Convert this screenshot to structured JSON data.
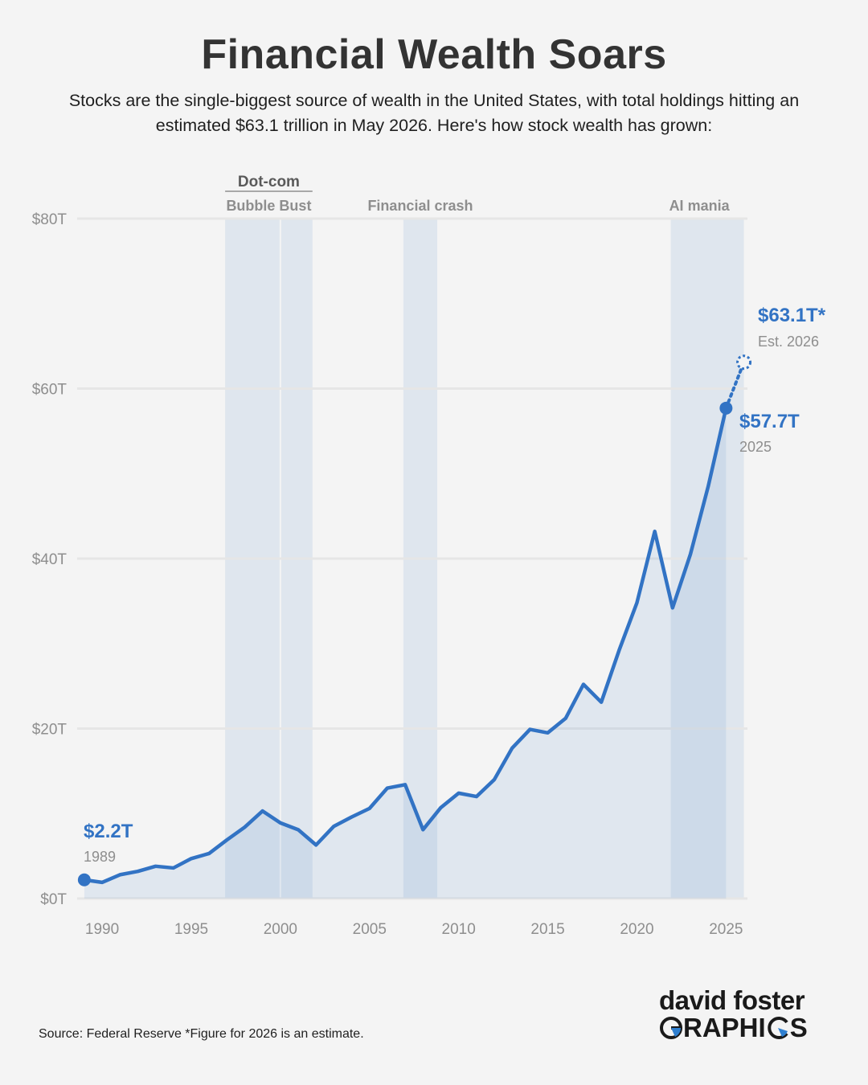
{
  "title": "Financial Wealth Soars",
  "subtitle": "Stocks are the single-biggest source of wealth in the United States, with total holdings hitting an estimated $63.1 trillion in May 2026. Here's how stock wealth has grown:",
  "source": "Source: Federal Reserve *Figure for 2026 is an estimate.",
  "logo": {
    "top": "david foster",
    "bottom_left": "RAPHI",
    "bottom_right": "S"
  },
  "colors": {
    "line": "#3273c4",
    "band": "#dfe6ee",
    "area": "#e1e8f1",
    "grid": "#e6e6e6",
    "text_gray": "#8e8e8e"
  },
  "chart_data": {
    "type": "area",
    "xlim": [
      1988.6,
      2026.2
    ],
    "ylim": [
      0,
      80
    ],
    "y_ticks": [
      0,
      20,
      40,
      60,
      80
    ],
    "y_tick_labels": [
      "$0T",
      "$20T",
      "$40T",
      "$60T",
      "$80T"
    ],
    "x_ticks": [
      1990,
      1995,
      2000,
      2005,
      2010,
      2015,
      2020,
      2025
    ],
    "x_tick_labels": [
      "1990",
      "1995",
      "2000",
      "2005",
      "2010",
      "2015",
      "2020",
      "2025"
    ],
    "series": [
      {
        "x": [
          1989,
          1990,
          1991,
          1992,
          1993,
          1994,
          1995,
          1996,
          1997,
          1998,
          1999,
          2000,
          2001,
          2002,
          2003,
          2004,
          2005,
          2006,
          2007,
          2008,
          2009,
          2010,
          2011,
          2012,
          2013,
          2014,
          2015,
          2016,
          2017,
          2018,
          2019,
          2020,
          2021,
          2022,
          2023,
          2024,
          2025
        ],
        "values": [
          2.2,
          1.9,
          2.8,
          3.2,
          3.8,
          3.6,
          4.7,
          5.3,
          6.9,
          8.4,
          10.3,
          8.9,
          8.1,
          6.3,
          8.5,
          9.6,
          10.6,
          13.0,
          13.4,
          8.1,
          10.7,
          12.4,
          12.0,
          14.0,
          17.7,
          19.9,
          19.5,
          21.2,
          25.2,
          23.1,
          29.2,
          34.8,
          43.2,
          34.2,
          40.5,
          48.5,
          57.7
        ]
      }
    ],
    "estimate": {
      "x": 2026,
      "value": 63.1
    },
    "bands": [
      {
        "start": 1996.9,
        "end": 2001.8,
        "label_top": "Dot-com",
        "label": "Bubble Bust"
      },
      {
        "start": 2006.9,
        "end": 2008.8,
        "label": "Financial crash"
      },
      {
        "start": 2021.9,
        "end": 2026.0,
        "label": "AI mania"
      }
    ],
    "annotations": [
      {
        "value_label": "$2.2T",
        "year_label": "1989"
      },
      {
        "value_label": "$57.7T",
        "year_label": "2025"
      },
      {
        "value_label": "$63.1T*",
        "year_label": "Est.  2026"
      }
    ],
    "grid": true
  }
}
